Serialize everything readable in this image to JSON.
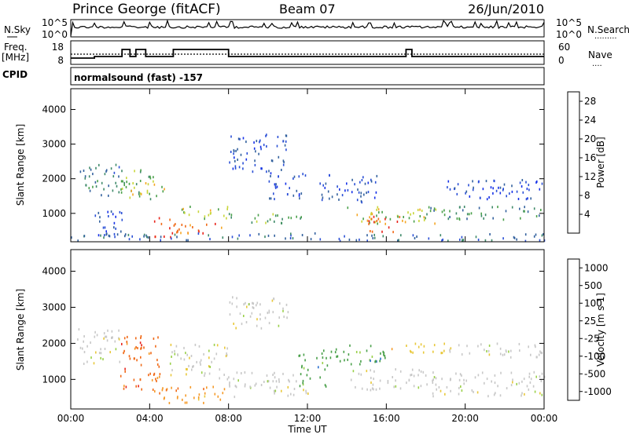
{
  "header": {
    "site": "Prince George (fitACF)",
    "beam": "Beam 07",
    "date": "26/Jun/2010"
  },
  "status_panels": {
    "nsky": {
      "left_label": "N.Sky",
      "ticks_left": [
        "10^5",
        "10^0"
      ],
      "ticks_right": [
        "10^5",
        "10^0"
      ],
      "right_label": "N.Search",
      "right_label_marker": "........."
    },
    "freq": {
      "left_label_line1": "Freq.",
      "left_label_line2": "[MHz]",
      "ticks_left": [
        "18",
        "8"
      ],
      "ticks_right": [
        "60",
        "0"
      ],
      "right_label": "Nave",
      "right_label_marker": "...."
    },
    "cpid": {
      "label": "CPID",
      "mode": "normalsound (fast) -157"
    }
  },
  "colors": {
    "power_scale": [
      "#1530e8",
      "#2a4fd6",
      "#33619e",
      "#3f8a6a",
      "#4aa04a",
      "#c9d63a",
      "#f5a623",
      "#f06a18",
      "#e8231a"
    ],
    "velocity_scale": [
      "#e8231a",
      "#f06a18",
      "#f59a28",
      "#e8c83a",
      "#c8c8c8",
      "#9ad04a",
      "#4aa04a",
      "#2a6fd0",
      "#1530e8"
    ]
  },
  "chart_data": [
    {
      "type": "heatmap",
      "name": "power-panel",
      "xlabel": "",
      "ylabel": "Slant Range [km]",
      "x_ticks": [
        "00:00",
        "04:00",
        "08:00",
        "12:00",
        "16:00",
        "20:00",
        "00:00"
      ],
      "y_ticks": [
        1000,
        2000,
        3000,
        4000
      ],
      "ylim": [
        180,
        4600
      ],
      "colorbar": {
        "label": "Power [dB]",
        "ticks": [
          4,
          8,
          12,
          16,
          20,
          24,
          28
        ],
        "range": [
          0,
          30
        ]
      },
      "regions": [
        {
          "t": [
            0.3,
            2.5
          ],
          "r": [
            1500,
            2400
          ],
          "level": 10
        },
        {
          "t": [
            1.0,
            2.6
          ],
          "r": [
            300,
            1100
          ],
          "level": 6
        },
        {
          "t": [
            2.5,
            4.2
          ],
          "r": [
            1400,
            2300
          ],
          "level": 14
        },
        {
          "t": [
            3.0,
            4.8
          ],
          "r": [
            1500,
            2000
          ],
          "level": 20
        },
        {
          "t": [
            4.0,
            5.5
          ],
          "r": [
            300,
            900
          ],
          "level": 26
        },
        {
          "t": [
            5.5,
            7.8
          ],
          "r": [
            400,
            700
          ],
          "level": 24
        },
        {
          "t": [
            5.5,
            8.0
          ],
          "r": [
            800,
            1200
          ],
          "level": 18
        },
        {
          "t": [
            8.0,
            12.0
          ],
          "r": [
            700,
            1000
          ],
          "level": 14
        },
        {
          "t": [
            8.0,
            11.0
          ],
          "r": [
            2200,
            3300
          ],
          "level": 6
        },
        {
          "t": [
            10.0,
            12.0
          ],
          "r": [
            1400,
            2200
          ],
          "level": 5
        },
        {
          "t": [
            12.5,
            15.5
          ],
          "r": [
            1300,
            2100
          ],
          "level": 5
        },
        {
          "t": [
            14.0,
            18.5
          ],
          "r": [
            700,
            1200
          ],
          "level": 18
        },
        {
          "t": [
            15.0,
            17.0
          ],
          "r": [
            400,
            900
          ],
          "level": 27
        },
        {
          "t": [
            18.0,
            24.0
          ],
          "r": [
            800,
            1200
          ],
          "level": 12
        },
        {
          "t": [
            19.0,
            24.0
          ],
          "r": [
            1400,
            2000
          ],
          "level": 4
        },
        {
          "t": [
            0.0,
            24.0
          ],
          "r": [
            200,
            420
          ],
          "level": 8
        }
      ]
    },
    {
      "type": "heatmap",
      "name": "velocity-panel",
      "xlabel": "Time UT",
      "ylabel": "Slant Range [km]",
      "x_ticks": [
        "00:00",
        "04:00",
        "08:00",
        "12:00",
        "16:00",
        "20:00",
        "00:00"
      ],
      "y_ticks": [
        1000,
        2000,
        3000,
        4000
      ],
      "ylim": [
        180,
        4600
      ],
      "colorbar": {
        "label": "Velocity [m s-1]",
        "ticks": [
          "-1000",
          "-500",
          "-100",
          "-25",
          "25",
          "100",
          "500",
          "1000"
        ]
      },
      "regions": [
        {
          "t": [
            0.3,
            2.5
          ],
          "r": [
            1400,
            2400
          ],
          "class": 4
        },
        {
          "t": [
            2.5,
            4.5
          ],
          "r": [
            600,
            2200
          ],
          "class": 1
        },
        {
          "t": [
            4.5,
            8.0
          ],
          "r": [
            300,
            800
          ],
          "class": 2
        },
        {
          "t": [
            5.0,
            8.0
          ],
          "r": [
            1000,
            2000
          ],
          "class": 4
        },
        {
          "t": [
            8.0,
            12.0
          ],
          "r": [
            500,
            1200
          ],
          "class": 4
        },
        {
          "t": [
            8.0,
            11.0
          ],
          "r": [
            2400,
            3300
          ],
          "class": 4
        },
        {
          "t": [
            11.5,
            13.0
          ],
          "r": [
            800,
            1800
          ],
          "class": 6
        },
        {
          "t": [
            13.0,
            16.0
          ],
          "r": [
            1400,
            2000
          ],
          "class": 6
        },
        {
          "t": [
            14.0,
            18.0
          ],
          "r": [
            700,
            1300
          ],
          "class": 4
        },
        {
          "t": [
            16.0,
            19.0
          ],
          "r": [
            1700,
            2000
          ],
          "class": 3
        },
        {
          "t": [
            18.0,
            24.0
          ],
          "r": [
            500,
            1200
          ],
          "class": 4
        },
        {
          "t": [
            19.0,
            24.0
          ],
          "r": [
            1600,
            2000
          ],
          "class": 4
        }
      ]
    }
  ]
}
